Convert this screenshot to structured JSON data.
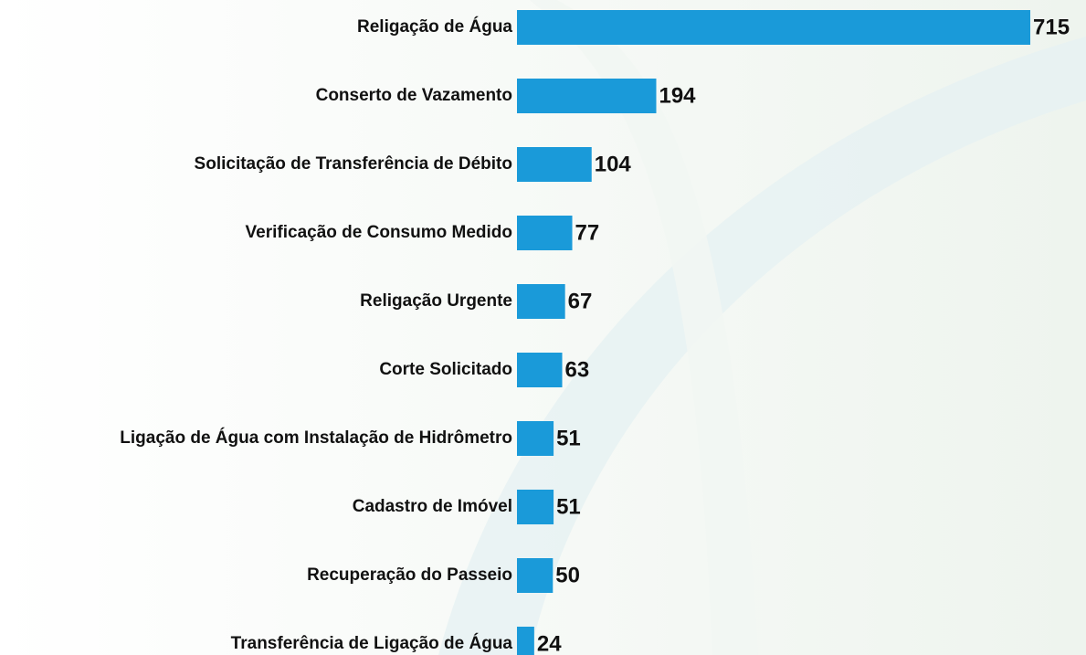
{
  "chart_data": {
    "type": "bar",
    "orientation": "horizontal",
    "categories": [
      "Religação de Água",
      "Conserto de Vazamento",
      "Solicitação de Transferência de Débito",
      "Verificação de Consumo Medido",
      "Religação Urgente",
      "Corte Solicitado",
      "Ligação de Água com Instalação de Hidrômetro",
      "Cadastro de Imóvel",
      "Recuperação do Passeio",
      "Transferência de Ligação de Água"
    ],
    "values": [
      715,
      194,
      104,
      77,
      67,
      63,
      51,
      51,
      50,
      24
    ],
    "color": "#1a9ad9"
  }
}
